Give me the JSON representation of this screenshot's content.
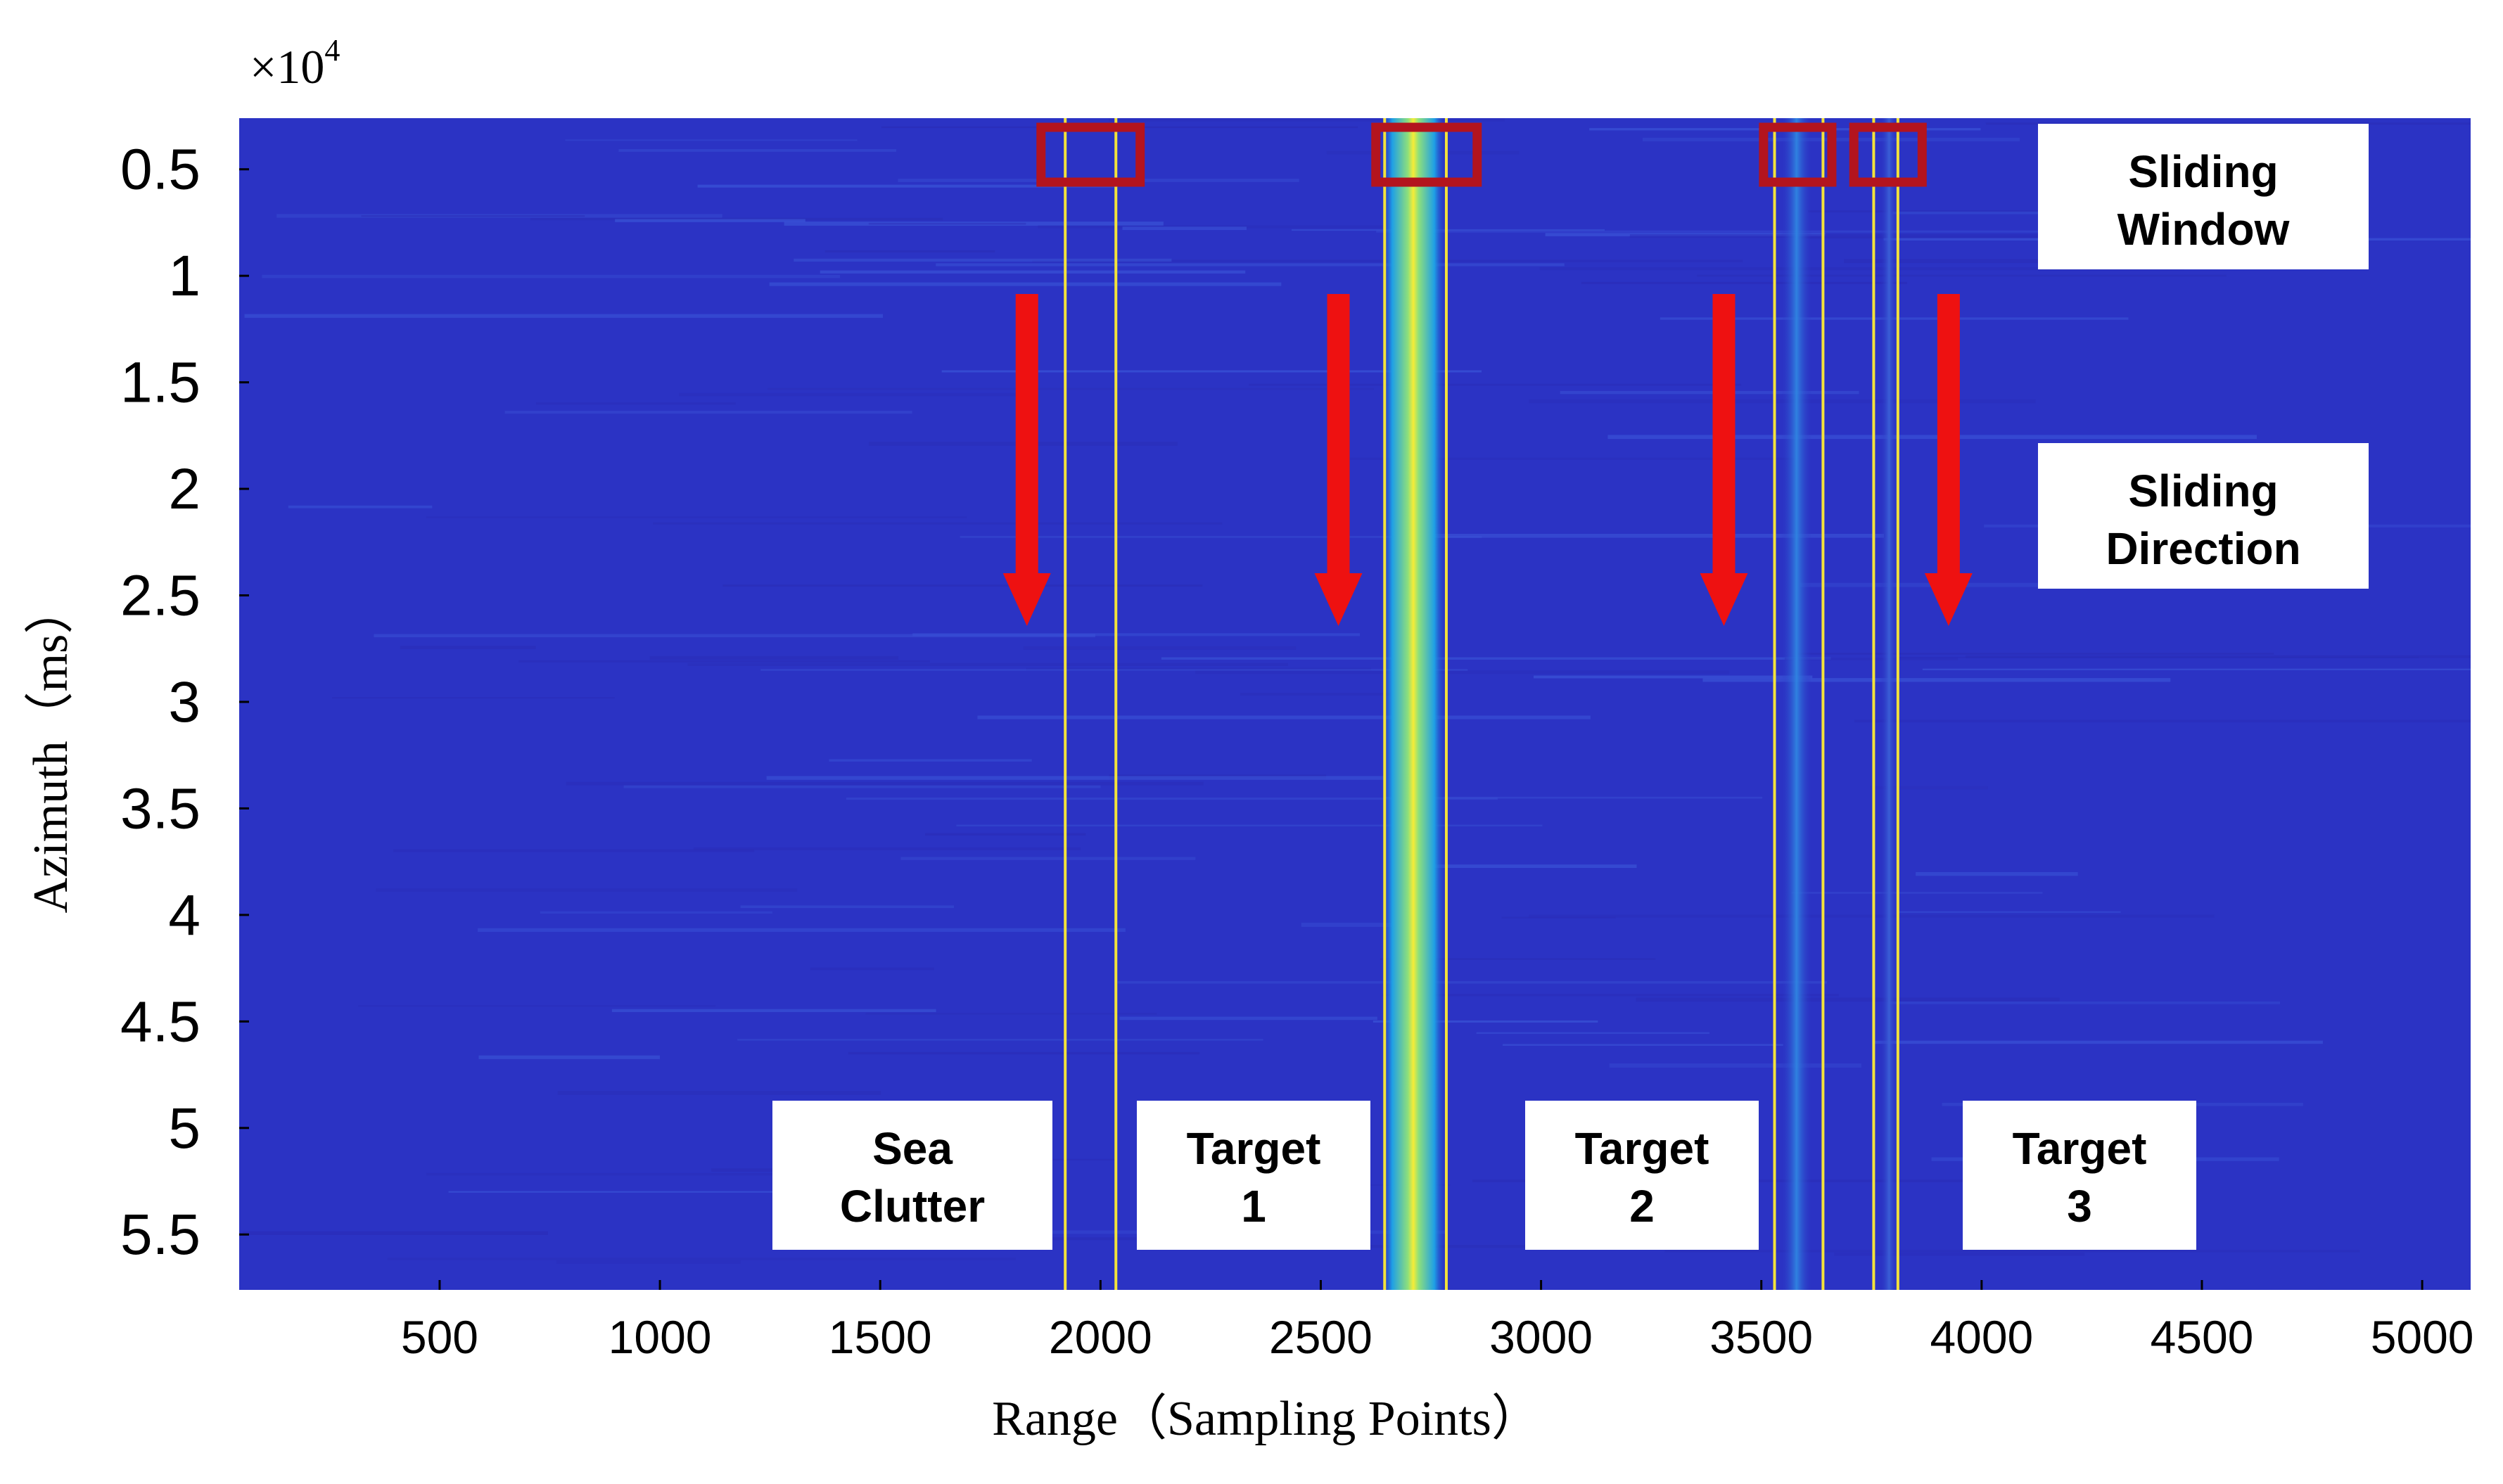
{
  "chart_data": {
    "type": "heatmap",
    "title": "",
    "xlabel": "Range（Sampling Points）",
    "ylabel": "Azimuth（ms）",
    "y_multiplier": "×10",
    "y_multiplier_exponent": "4",
    "xlim": [
      45,
      5110
    ],
    "ylim": [
      0.26,
      5.76
    ],
    "x_ticks": [
      500,
      1000,
      1500,
      2000,
      2500,
      3000,
      3500,
      4000,
      4500,
      5000
    ],
    "x_tick_labels": [
      "500",
      "1000",
      "1500",
      "2000",
      "2500",
      "3000",
      "3500",
      "4000",
      "4500",
      "5000"
    ],
    "y_ticks": [
      0.5,
      1,
      1.5,
      2,
      2.5,
      3,
      3.5,
      4,
      4.5,
      5,
      5.5
    ],
    "y_tick_labels": [
      "0.5",
      "1",
      "1.5",
      "2",
      "2.5",
      "3",
      "3.5",
      "4",
      "4.5",
      "5",
      "5.5"
    ],
    "y_direction": "down",
    "colormap": {
      "background": "#2b33c4",
      "mid": "#1ea8e6",
      "high": "#f5e93a"
    },
    "bright_bands": [
      {
        "x_center": 2710,
        "width": 150,
        "intensity": "high"
      },
      {
        "x_center": 3580,
        "width": 70,
        "intensity": "medium"
      },
      {
        "x_center": 3790,
        "width": 40,
        "intensity": "low"
      }
    ],
    "window_lines": [
      {
        "x0": 1920,
        "x1": 2035
      },
      {
        "x0": 2645,
        "x1": 2785
      },
      {
        "x0": 3530,
        "x1": 3640
      },
      {
        "x0": 3755,
        "x1": 3810
      }
    ],
    "sliding_windows": [
      {
        "x0": 1865,
        "x1": 2090
      },
      {
        "x0": 2625,
        "x1": 2855
      },
      {
        "x0": 3505,
        "x1": 3660
      },
      {
        "x0": 3710,
        "x1": 3865
      }
    ],
    "arrows": [
      1833,
      2540,
      3415,
      3925
    ],
    "annotations": [
      {
        "lines": [
          "Sliding",
          "Window"
        ]
      },
      {
        "lines": [
          "Sliding",
          "Direction"
        ]
      },
      {
        "lines": [
          "Sea",
          "Clutter"
        ]
      },
      {
        "lines": [
          "Target",
          "1"
        ]
      },
      {
        "lines": [
          "Target",
          "2"
        ]
      },
      {
        "lines": [
          "Target",
          "3"
        ]
      }
    ]
  }
}
